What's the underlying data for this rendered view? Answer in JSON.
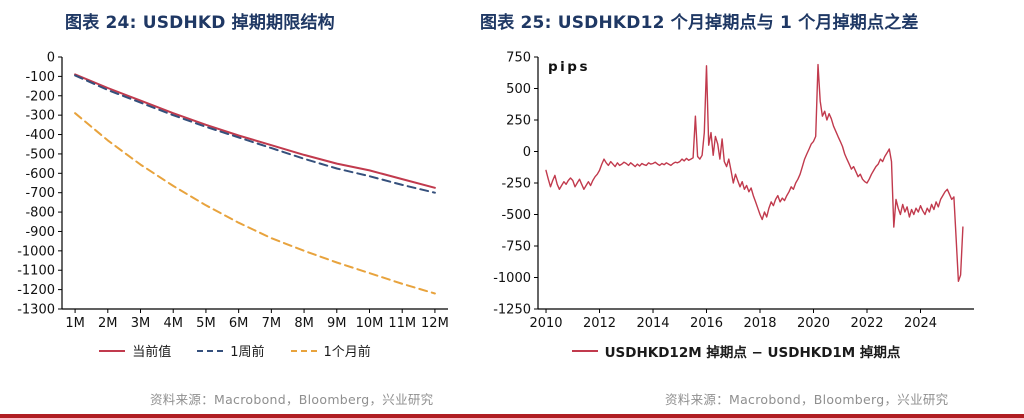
{
  "colors": {
    "title": "#1F3864",
    "source_text": "#8F8F8F",
    "footer_bar": "#B01E23",
    "line_red": "#C13A4D",
    "line_navy": "#35507C",
    "line_gold": "#E8A33D"
  },
  "left_chart": {
    "title": "图表 24: USDHKD 掉期期限结构",
    "source": "资料来源：Macrobond，Bloomberg，兴业研究"
  },
  "right_chart": {
    "title": "图表 25: USDHKD12 个月掉期点与 1 个月掉期点之差",
    "source": "资料来源：Macrobond，Bloomberg，兴业研究"
  },
  "chart_data": [
    {
      "type": "line",
      "title": "图表 24: USDHKD 掉期期限结构",
      "categories": [
        "1M",
        "2M",
        "3M",
        "4M",
        "5M",
        "6M",
        "7M",
        "8M",
        "9M",
        "10M",
        "11M",
        "12M"
      ],
      "ylim": [
        -1300,
        0
      ],
      "yticks": [
        0,
        -100,
        -200,
        -300,
        -400,
        -500,
        -600,
        -700,
        -800,
        -900,
        -1000,
        -1100,
        -1200,
        -1300
      ],
      "grid": false,
      "legend_position": "bottom",
      "series": [
        {
          "name": "当前值",
          "color": "#C13A4D",
          "style": "solid",
          "width": 2,
          "values": [
            -90,
            -160,
            -225,
            -290,
            -350,
            -405,
            -455,
            -505,
            -550,
            -585,
            -630,
            -675
          ]
        },
        {
          "name": "1周前",
          "color": "#35507C",
          "style": "dashed",
          "width": 2,
          "values": [
            -95,
            -170,
            -235,
            -300,
            -360,
            -415,
            -470,
            -525,
            -575,
            -615,
            -660,
            -700
          ]
        },
        {
          "name": "1个月前",
          "color": "#E8A33D",
          "style": "dashed",
          "width": 2,
          "values": [
            -290,
            -430,
            -555,
            -665,
            -765,
            -855,
            -935,
            -1000,
            -1060,
            -1115,
            -1170,
            -1220
          ]
        }
      ]
    },
    {
      "type": "line",
      "title": "图表 25: USDHKD12 个月掉期点与 1 个月掉期点之差",
      "ylabel": "pips",
      "xlim": [
        2009.7,
        2026.0
      ],
      "ylim": [
        -1250,
        750
      ],
      "yticks": [
        750,
        500,
        250,
        0,
        -250,
        -500,
        -750,
        -1000,
        -1250
      ],
      "xticks": [
        2010,
        2012,
        2014,
        2016,
        2018,
        2020,
        2022,
        2024
      ],
      "grid": false,
      "legend_position": "bottom",
      "series": [
        {
          "name": "USDHKD12M 掉期点 − USDHKD1M 掉期点",
          "color": "#C13A4D",
          "style": "solid",
          "width": 1.4,
          "x_start": 2010.0,
          "x_step": 0.0833333,
          "values": [
            -150,
            -220,
            -280,
            -230,
            -190,
            -260,
            -300,
            -270,
            -240,
            -260,
            -230,
            -210,
            -230,
            -280,
            -250,
            -220,
            -260,
            -300,
            -270,
            -240,
            -270,
            -230,
            -200,
            -180,
            -150,
            -100,
            -60,
            -90,
            -110,
            -80,
            -100,
            -120,
            -90,
            -110,
            -100,
            -85,
            -95,
            -110,
            -90,
            -105,
            -120,
            -100,
            -115,
            -95,
            -105,
            -110,
            -90,
            -100,
            -95,
            -85,
            -100,
            -110,
            -95,
            -105,
            -90,
            -100,
            -110,
            -95,
            -85,
            -90,
            -80,
            -60,
            -75,
            -55,
            -70,
            -60,
            -50,
            280,
            -40,
            -60,
            -30,
            150,
            680,
            50,
            150,
            -30,
            120,
            60,
            -60,
            100,
            -80,
            -120,
            -60,
            -150,
            -250,
            -180,
            -230,
            -280,
            -240,
            -300,
            -270,
            -320,
            -290,
            -350,
            -400,
            -450,
            -500,
            -540,
            -480,
            -520,
            -450,
            -400,
            -430,
            -380,
            -350,
            -400,
            -370,
            -390,
            -350,
            -320,
            -280,
            -300,
            -250,
            -220,
            -180,
            -120,
            -60,
            -20,
            20,
            60,
            80,
            120,
            690,
            400,
            280,
            320,
            250,
            300,
            260,
            200,
            160,
            120,
            80,
            40,
            -20,
            -60,
            -100,
            -140,
            -120,
            -160,
            -200,
            -180,
            -220,
            -240,
            -250,
            -220,
            -180,
            -150,
            -120,
            -100,
            -60,
            -80,
            -40,
            -10,
            20,
            -80,
            -600,
            -380,
            -450,
            -500,
            -420,
            -480,
            -440,
            -520,
            -460,
            -500,
            -450,
            -480,
            -430,
            -470,
            -500,
            -450,
            -480,
            -420,
            -460,
            -400,
            -440,
            -380,
            -350,
            -320,
            -300,
            -340,
            -380,
            -360,
            -700,
            -1030,
            -980,
            -600
          ]
        }
      ]
    }
  ]
}
